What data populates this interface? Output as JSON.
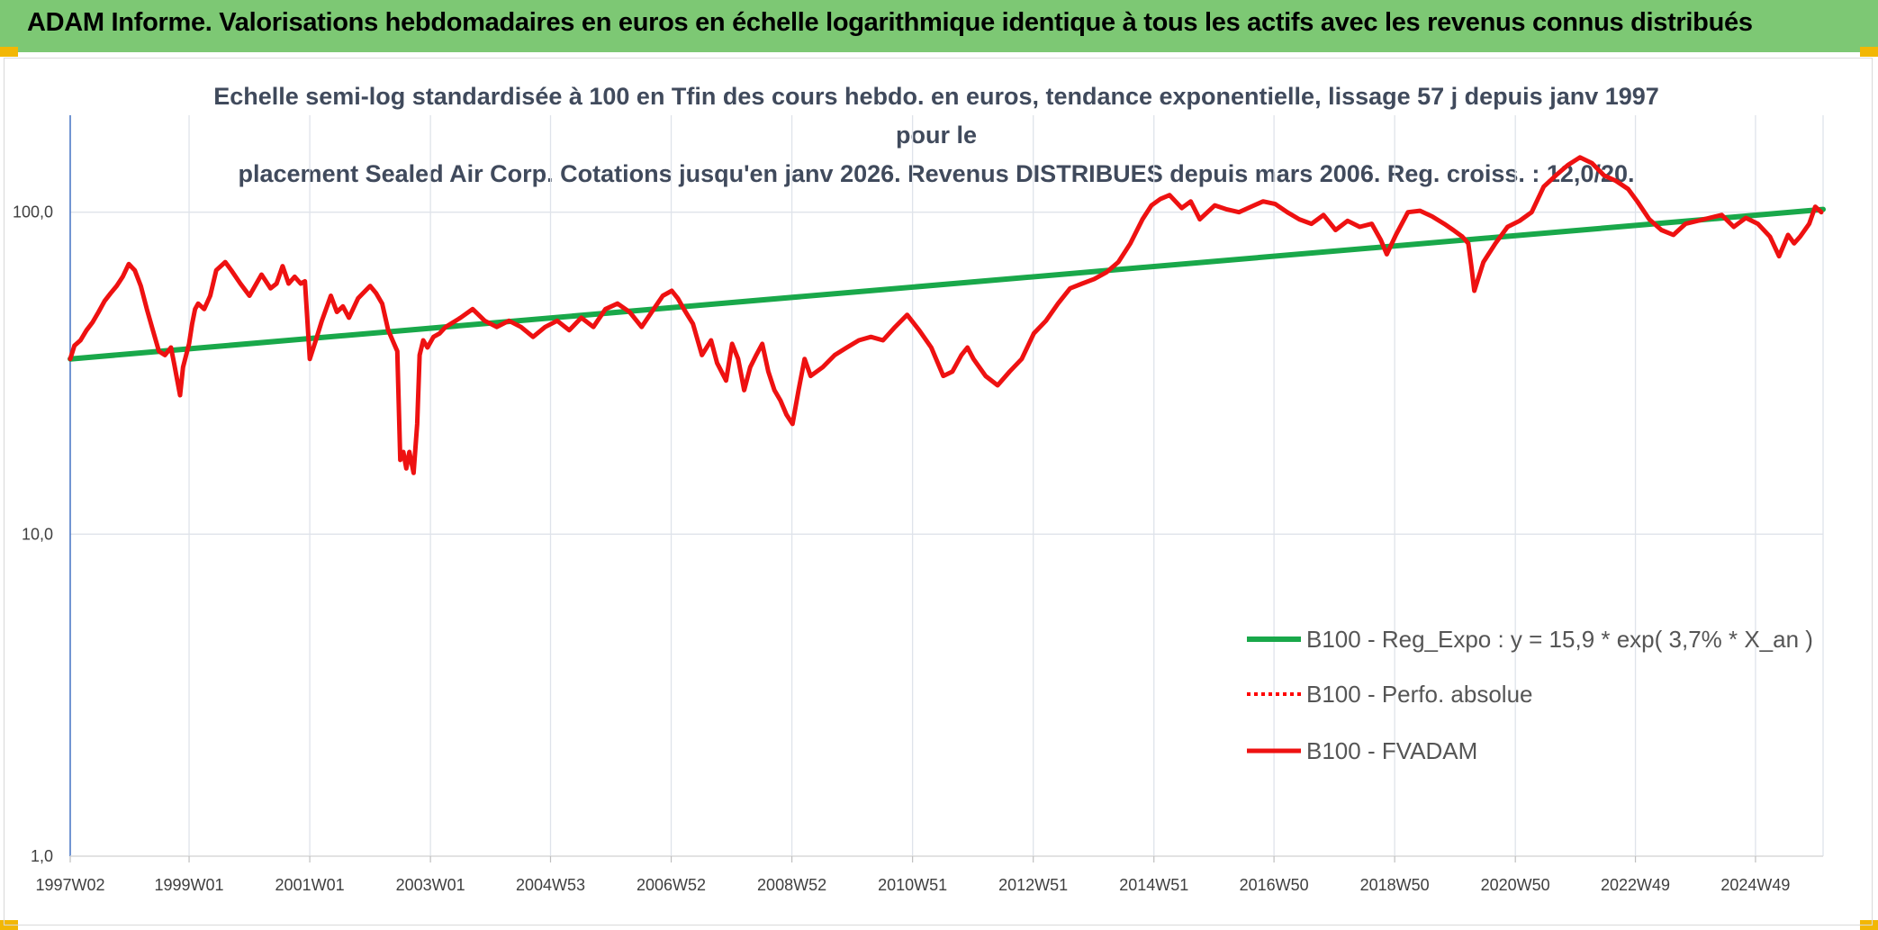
{
  "header": {
    "title": "ADAM Informe. Valorisations hebdomadaires en euros en échelle logarithmique identique à tous les actifs avec les revenus connus distribués"
  },
  "chart_data": {
    "type": "line",
    "title": "Echelle semi-log standardisée à 100 en Tfin des cours hebdo. en euros, tendance exponentielle, lissage 57 j depuis janv 1997 pour le placement Sealed Air Corp. Cotations jusqu'en janv 2026. Revenus DISTRIBUES depuis mars 2006. Reg. croiss. : 12,0/20.",
    "title_lines": [
      "Echelle semi-log standardisée à 100 en Tfin des cours hebdo. en euros, tendance exponentielle, lissage 57 j depuis janv 1997 pour le",
      "placement Sealed Air Corp. Cotations jusqu'en janv 2026. Revenus DISTRIBUES depuis mars 2006. Reg. croiss. : 12,0/20."
    ],
    "y_scale": "log",
    "ylim": [
      1,
      200
    ],
    "y_ticks": [
      {
        "value": 1,
        "label": "1,0"
      },
      {
        "value": 10,
        "label": "10,0"
      },
      {
        "value": 100,
        "label": "100,0"
      }
    ],
    "xlim": [
      1997.03,
      2026.08
    ],
    "x_ticks": [
      {
        "value": 1997.03,
        "label": "1997W02"
      },
      {
        "value": 1999.0,
        "label": "1999W01"
      },
      {
        "value": 2001.0,
        "label": "2001W01"
      },
      {
        "value": 2003.0,
        "label": "2003W01"
      },
      {
        "value": 2004.99,
        "label": "2004W53"
      },
      {
        "value": 2006.99,
        "label": "2006W52"
      },
      {
        "value": 2008.99,
        "label": "2008W52"
      },
      {
        "value": 2010.99,
        "label": "2010W51"
      },
      {
        "value": 2012.99,
        "label": "2012W51"
      },
      {
        "value": 2014.99,
        "label": "2014W51"
      },
      {
        "value": 2016.98,
        "label": "2016W50"
      },
      {
        "value": 2018.98,
        "label": "2018W50"
      },
      {
        "value": 2020.98,
        "label": "2020W50"
      },
      {
        "value": 2022.97,
        "label": "2022W49"
      },
      {
        "value": 2024.96,
        "label": "2024W49"
      }
    ],
    "grid": "vertical",
    "legend_position": "bottom-right",
    "series": [
      {
        "name": "B100 - Reg_Expo : y = 15,9 * exp( 3,7% *  X_an )",
        "color": "#19a84a",
        "style": "solid",
        "x": [
          1997.03,
          2026.08
        ],
        "values": [
          35.0,
          102.0
        ]
      },
      {
        "name": "B100 - Perfo. absolue",
        "color": "#ff0000",
        "style": "dotted",
        "x": [],
        "values": []
      },
      {
        "name": "B100 - FVADAM",
        "color": "#ee1111",
        "style": "solid",
        "x": [
          1997.03,
          1997.1,
          1997.2,
          1997.3,
          1997.4,
          1997.5,
          1997.6,
          1997.7,
          1997.8,
          1997.9,
          1998.0,
          1998.1,
          1998.2,
          1998.3,
          1998.4,
          1998.5,
          1998.6,
          1998.7,
          1998.75,
          1998.85,
          1998.9,
          1999.0,
          1999.05,
          1999.1,
          1999.15,
          1999.25,
          1999.35,
          1999.45,
          1999.6,
          1999.7,
          1999.85,
          2000.0,
          2000.2,
          2000.35,
          2000.45,
          2000.55,
          2000.65,
          2000.75,
          2000.85,
          2000.92,
          2001.0,
          2001.1,
          2001.2,
          2001.35,
          2001.45,
          2001.55,
          2001.65,
          2001.8,
          2002.0,
          2002.1,
          2002.2,
          2002.3,
          2002.45,
          2002.5,
          2002.55,
          2002.6,
          2002.65,
          2002.72,
          2002.78,
          2002.82,
          2002.88,
          2002.95,
          2003.05,
          2003.15,
          2003.25,
          2003.5,
          2003.7,
          2003.9,
          2004.1,
          2004.3,
          2004.5,
          2004.7,
          2004.9,
          2005.1,
          2005.3,
          2005.5,
          2005.7,
          2005.9,
          2006.1,
          2006.3,
          2006.5,
          2006.7,
          2006.85,
          2007.0,
          2007.1,
          2007.2,
          2007.35,
          2007.5,
          2007.65,
          2007.75,
          2007.9,
          2008.0,
          2008.1,
          2008.2,
          2008.3,
          2008.4,
          2008.5,
          2008.6,
          2008.7,
          2008.8,
          2008.9,
          2009.0,
          2009.1,
          2009.2,
          2009.3,
          2009.5,
          2009.7,
          2009.9,
          2010.1,
          2010.3,
          2010.5,
          2010.7,
          2010.9,
          2011.1,
          2011.3,
          2011.5,
          2011.65,
          2011.8,
          2011.9,
          2012.0,
          2012.2,
          2012.4,
          2012.6,
          2012.8,
          2013.0,
          2013.2,
          2013.4,
          2013.6,
          2013.8,
          2014.0,
          2014.2,
          2014.4,
          2014.6,
          2014.8,
          2014.95,
          2015.1,
          2015.25,
          2015.45,
          2015.6,
          2015.75,
          2016.0,
          2016.2,
          2016.4,
          2016.6,
          2016.8,
          2017.0,
          2017.2,
          2017.4,
          2017.6,
          2017.8,
          2018.0,
          2018.2,
          2018.4,
          2018.6,
          2018.75,
          2018.85,
          2019.0,
          2019.2,
          2019.4,
          2019.6,
          2019.8,
          2019.95,
          2020.1,
          2020.2,
          2020.25,
          2020.3,
          2020.45,
          2020.65,
          2020.85,
          2021.05,
          2021.25,
          2021.45,
          2021.65,
          2021.85,
          2022.05,
          2022.25,
          2022.45,
          2022.65,
          2022.85,
          2023.0,
          2023.2,
          2023.4,
          2023.6,
          2023.8,
          2024.0,
          2024.2,
          2024.4,
          2024.6,
          2024.8,
          2025.0,
          2025.2,
          2025.35,
          2025.5,
          2025.6,
          2025.7,
          2025.85,
          2025.95,
          2026.05
        ],
        "values": [
          35.0,
          38.5,
          40.0,
          43.0,
          45.5,
          49.0,
          53.0,
          56.0,
          59.0,
          63.0,
          69.0,
          66.0,
          59.0,
          50.0,
          43.0,
          37.0,
          36.0,
          38.0,
          34.0,
          27.0,
          33.0,
          39.0,
          45.0,
          50.0,
          52.0,
          50.0,
          55.0,
          66.0,
          70.0,
          66.0,
          60.0,
          55.0,
          64.0,
          58.0,
          60.0,
          68.0,
          60.0,
          63.0,
          60.0,
          61.0,
          35.0,
          40.0,
          46.0,
          55.0,
          49.0,
          51.0,
          47.0,
          54.0,
          59.0,
          56.0,
          52.0,
          43.0,
          37.0,
          17.0,
          18.0,
          16.0,
          18.0,
          15.5,
          22.0,
          36.0,
          40.0,
          38.0,
          41.0,
          42.0,
          44.0,
          47.0,
          50.0,
          46.0,
          44.0,
          46.0,
          44.0,
          41.0,
          44.0,
          46.0,
          43.0,
          47.0,
          44.0,
          50.0,
          52.0,
          49.0,
          44.0,
          50.0,
          55.0,
          57.0,
          54.0,
          50.0,
          45.0,
          36.0,
          40.0,
          34.0,
          30.0,
          39.0,
          35.0,
          28.0,
          33.0,
          36.0,
          39.0,
          32.0,
          28.0,
          26.0,
          23.5,
          22.0,
          28.0,
          35.0,
          31.0,
          33.0,
          36.0,
          38.0,
          40.0,
          41.0,
          40.0,
          44.0,
          48.0,
          43.0,
          38.0,
          31.0,
          32.0,
          36.0,
          38.0,
          35.0,
          31.0,
          29.0,
          32.0,
          35.0,
          42.0,
          46.0,
          52.0,
          58.0,
          60.0,
          62.0,
          65.0,
          70.0,
          80.0,
          95.0,
          105.0,
          110.0,
          113.0,
          103.0,
          108.0,
          95.0,
          105.0,
          102.0,
          100.0,
          104.0,
          108.0,
          106.0,
          100.0,
          95.0,
          92.0,
          98.0,
          88.0,
          94.0,
          90.0,
          92.0,
          82.0,
          74.0,
          85.0,
          100.0,
          101.0,
          97.0,
          92.0,
          88.0,
          84.0,
          80.0,
          68.0,
          57.0,
          70.0,
          80.0,
          90.0,
          94.0,
          100.0,
          120.0,
          130.0,
          140.0,
          148.0,
          142.0,
          130.0,
          125.0,
          118.0,
          108.0,
          95.0,
          88.0,
          85.0,
          92.0,
          94.0,
          96.0,
          98.0,
          90.0,
          96.0,
          92.0,
          84.0,
          73.0,
          85.0,
          80.0,
          84.0,
          92.0,
          104.0,
          100.0
        ]
      }
    ]
  }
}
